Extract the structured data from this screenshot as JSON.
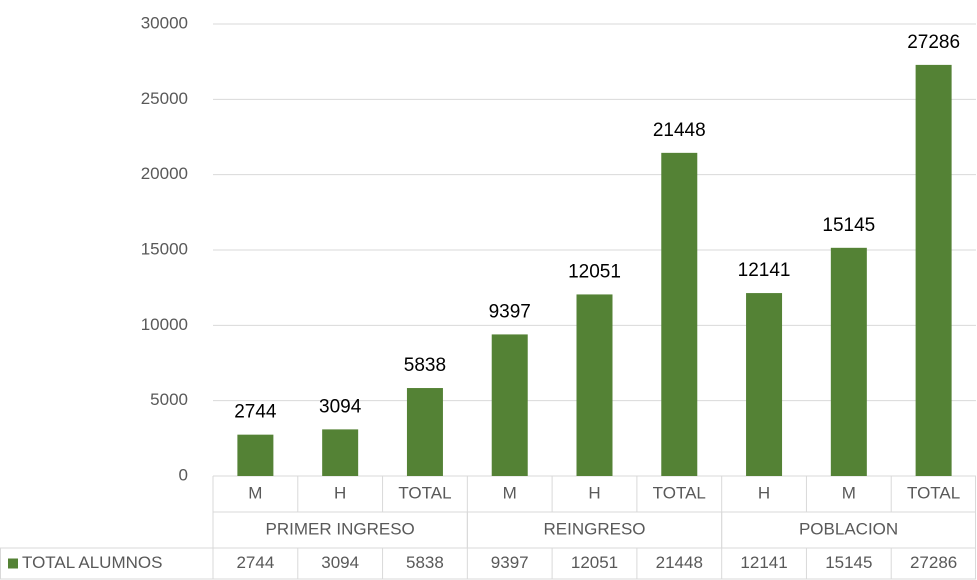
{
  "chart_data": {
    "type": "bar",
    "categories": [
      "M",
      "H",
      "TOTAL",
      "M",
      "H",
      "TOTAL",
      "H",
      "M",
      "TOTAL"
    ],
    "groups": [
      "PRIMER INGRESO",
      "REINGRESO",
      "POBLACION"
    ],
    "series": [
      {
        "name": "TOTAL ALUMNOS",
        "color": "#548235",
        "values": [
          2744,
          3094,
          5838,
          9397,
          12051,
          21448,
          12141,
          15145,
          27286
        ]
      }
    ],
    "ylim": [
      0,
      30000
    ],
    "yticks": [
      0,
      5000,
      10000,
      15000,
      20000,
      25000,
      30000
    ],
    "grid": true,
    "data_labels": true,
    "data_table": true
  }
}
